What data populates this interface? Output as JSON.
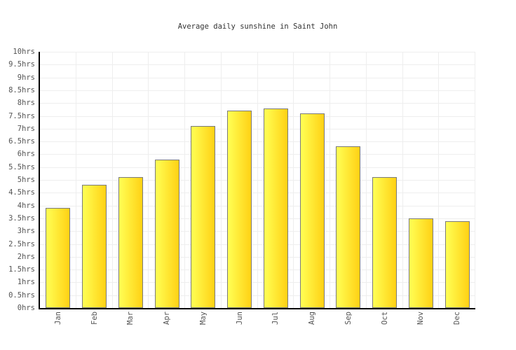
{
  "chart_data": {
    "type": "bar",
    "title": "Average daily sunshine in Saint John",
    "categories": [
      "Jan",
      "Feb",
      "Mar",
      "Apr",
      "May",
      "Jun",
      "Jul",
      "Aug",
      "Sep",
      "Oct",
      "Nov",
      "Dec"
    ],
    "values": [
      3.9,
      4.8,
      5.1,
      5.8,
      7.1,
      7.7,
      7.8,
      7.6,
      6.3,
      5.1,
      3.5,
      3.4
    ],
    "unit": "hrs",
    "ylim": [
      0,
      10
    ],
    "ytick_step": 0.5,
    "ytick_labels": [
      "10hrs",
      "9.5hrs",
      "9hrs",
      "8.5hrs",
      "8hrs",
      "7.5hrs",
      "7hrs",
      "6.5hrs",
      "6hrs",
      "5.5hrs",
      "5hrs",
      "4.5hrs",
      "4hrs",
      "3.5hrs",
      "3hrs",
      "2.5hrs",
      "2hrs",
      "1.5hrs",
      "1hrs",
      "0.5hrs",
      "0hrs"
    ],
    "grid": true,
    "legend": "none",
    "colors": {
      "bar_fill_left": "#ffff55",
      "bar_fill_right": "#ffd114",
      "bar_border": "#7a7a7a",
      "gridline": "#eeeeee",
      "axis": "#000000",
      "tick_label": "#555555",
      "title": "#333333",
      "background": "#ffffff"
    }
  }
}
